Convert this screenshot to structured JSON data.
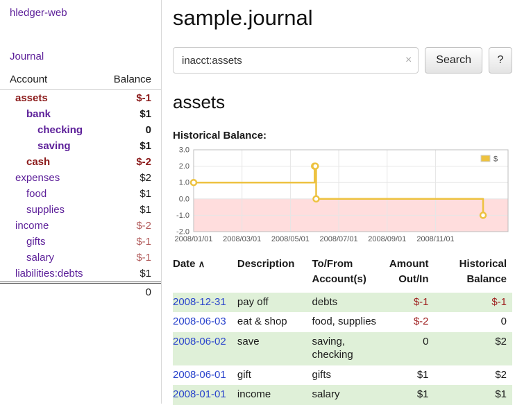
{
  "colors": {
    "link_purple": "#5c1f99",
    "date_blue": "#2a44cc",
    "negative": "#9e1f1f",
    "negative_bold": "#8b1a1a",
    "negative_muted": "#b25b5b",
    "row_green": "#dff0d8"
  },
  "icons": {
    "clear_search": "×",
    "sort_ascending": "∧"
  },
  "sidebar": {
    "brand": "hledger-web",
    "journal_link": "Journal",
    "accounts_header": "Account",
    "balance_header": "Balance",
    "accounts": [
      {
        "name": "assets",
        "balance": "$-1"
      },
      {
        "name": "bank",
        "balance": "$1"
      },
      {
        "name": "checking",
        "balance": "0"
      },
      {
        "name": "saving",
        "balance": "$1"
      },
      {
        "name": "cash",
        "balance": "$-2"
      },
      {
        "name": "expenses",
        "balance": "$2"
      },
      {
        "name": "food",
        "balance": "$1"
      },
      {
        "name": "supplies",
        "balance": "$1"
      },
      {
        "name": "income",
        "balance": "$-2"
      },
      {
        "name": "gifts",
        "balance": "$-1"
      },
      {
        "name": "salary",
        "balance": "$-1"
      },
      {
        "name": "liabilities:debts",
        "balance": "$1"
      }
    ],
    "total": "0"
  },
  "main": {
    "title": "sample.journal",
    "search": {
      "value": "inacct:assets",
      "button_label": "Search",
      "help_label": "?"
    },
    "account_heading": "assets"
  },
  "chart_data": {
    "type": "line",
    "step": true,
    "title": "Historical Balance:",
    "legend": {
      "label": "$",
      "position": "top-right"
    },
    "ylim": [
      -2,
      3
    ],
    "ytick_labels": [
      "3.0",
      "2.0",
      "1.0",
      "0.0",
      "-1.0",
      "-2.0"
    ],
    "xtick_labels": [
      "2008/01/01",
      "2008/03/01",
      "2008/05/01",
      "2008/07/01",
      "2008/09/01",
      "2008/11/01"
    ],
    "x_start": "2008-01-01",
    "x_months_max": 13,
    "series": [
      {
        "name": "$",
        "color": "#edc240",
        "points": [
          [
            "2008-01-01",
            1
          ],
          [
            "2008-06-01",
            2
          ],
          [
            "2008-06-02",
            2
          ],
          [
            "2008-06-03",
            0
          ],
          [
            "2008-12-31",
            -1
          ]
        ]
      }
    ],
    "negative_region_color": "#ffdddd",
    "grid_color": "#e6e6e6",
    "border_color": "#bcbcbc",
    "label_color": "#545454"
  },
  "register": {
    "headers": [
      "Date",
      "Description",
      "To/From Account(s)",
      "Amount Out/In",
      "Historical Balance"
    ],
    "rows": [
      {
        "date": "2008-12-31",
        "description": "pay off",
        "accounts": "debts",
        "amount": "$-1",
        "balance": "$-1"
      },
      {
        "date": "2008-06-03",
        "description": "eat & shop",
        "accounts": "food, supplies",
        "amount": "$-2",
        "balance": "0"
      },
      {
        "date": "2008-06-02",
        "description": "save",
        "accounts": "saving, checking",
        "amount": "0",
        "balance": "$2"
      },
      {
        "date": "2008-06-01",
        "description": "gift",
        "accounts": "gifts",
        "amount": "$1",
        "balance": "$2"
      },
      {
        "date": "2008-01-01",
        "description": "income",
        "accounts": "salary",
        "amount": "$1",
        "balance": "$1"
      }
    ]
  }
}
